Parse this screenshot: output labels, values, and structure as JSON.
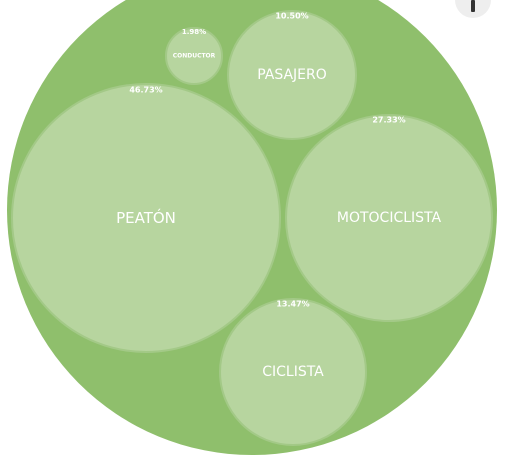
{
  "chart_data": {
    "type": "bubble",
    "title": "",
    "colors": {
      "container": "#8fbf6c",
      "bubble": "#b7d59f",
      "bubble_stroke": "#a3c987",
      "text": "#ffffff"
    },
    "nodes": [
      {
        "name": "PEATÓN",
        "percent_label": "46.73%",
        "value": 46.73
      },
      {
        "name": "MOTOCICLISTA",
        "percent_label": "27.33%",
        "value": 27.33
      },
      {
        "name": "CICLISTA",
        "percent_label": "13.47%",
        "value": 13.47
      },
      {
        "name": "PASAJERO",
        "percent_label": "10.50%",
        "value": 10.5
      },
      {
        "name": "CONDUCTOR",
        "percent_label": "1.98%",
        "value": 1.98
      }
    ]
  },
  "toolbar": {
    "icon": "more-options-icon"
  }
}
